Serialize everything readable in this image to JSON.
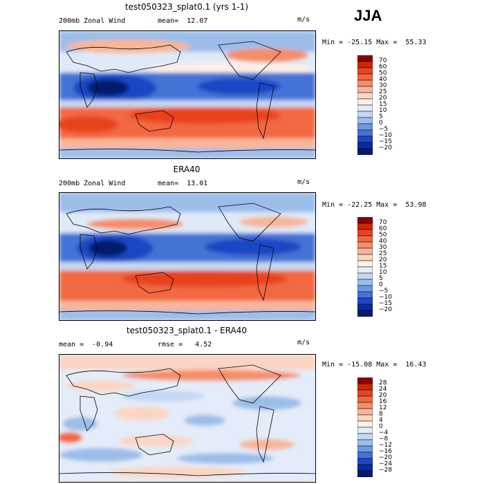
{
  "season": "JJA",
  "panels": [
    {
      "title": "test050323_splat0.1 (yrs 1-1)",
      "left_text": "200mb Zonal Wind",
      "mid_text": "mean=  12.07",
      "units": "m/s",
      "minmax": "Min = -25.15 Max =  55.33",
      "levels": [
        "70",
        "60",
        "50",
        "40",
        "30",
        "25",
        "20",
        "15",
        "10",
        "5",
        "0",
        "−5",
        "−10",
        "−15",
        "−20"
      ],
      "colors": [
        "#8b0000",
        "#c8260e",
        "#e8431f",
        "#f2673f",
        "#f58d68",
        "#f8b598",
        "#fad6c2",
        "#fdf0e6",
        "#e3ecf8",
        "#c3d8f2",
        "#9cbdea",
        "#6e98df",
        "#4472d6",
        "#1f47c4",
        "#0b28a5",
        "#041a6e"
      ]
    },
    {
      "title": "ERA40",
      "left_text": "200mb Zonal Wind",
      "mid_text": "mean=  13.01",
      "units": "m/s",
      "minmax": "Min = -22.25 Max =  53.98",
      "levels": [
        "70",
        "60",
        "50",
        "40",
        "30",
        "25",
        "20",
        "15",
        "10",
        "5",
        "0",
        "−5",
        "−10",
        "−15",
        "−20"
      ],
      "colors": [
        "#8b0000",
        "#c8260e",
        "#e8431f",
        "#f2673f",
        "#f58d68",
        "#f8b598",
        "#fad6c2",
        "#fdf0e6",
        "#e3ecf8",
        "#c3d8f2",
        "#9cbdea",
        "#6e98df",
        "#4472d6",
        "#1f47c4",
        "#0b28a5",
        "#041a6e"
      ]
    },
    {
      "title": "test050323_splat0.1 - ERA40",
      "left_text": "mean =  -0.94",
      "mid_text": "rmse =   4.52",
      "units": "m/s",
      "minmax": "Min = -15.08 Max =  16.43",
      "levels": [
        "28",
        "24",
        "20",
        "16",
        "12",
        "8",
        "4",
        "0",
        "−4",
        "−8",
        "−12",
        "−16",
        "−20",
        "−24",
        "−28"
      ],
      "colors": [
        "#8b0000",
        "#c8260e",
        "#e8431f",
        "#f2673f",
        "#f58d68",
        "#f8b598",
        "#fad6c2",
        "#fdf0e6",
        "#e3ecf8",
        "#c3d8f2",
        "#9cbdea",
        "#6e98df",
        "#4472d6",
        "#1f47c4",
        "#0b28a5",
        "#041a6e"
      ]
    }
  ]
}
